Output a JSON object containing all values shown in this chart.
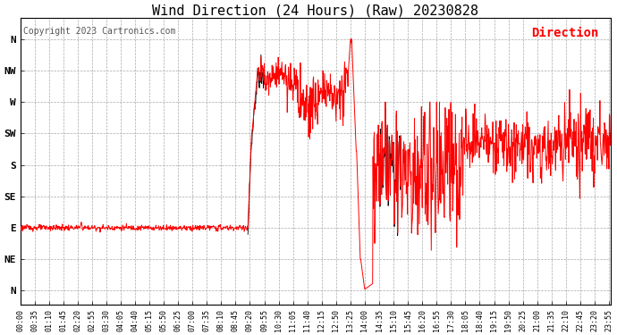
{
  "title": "Wind Direction (24 Hours) (Raw) 20230828",
  "copyright": "Copyright 2023 Cartronics.com",
  "legend_label": "Direction",
  "legend_color": "#ff0000",
  "background_color": "#ffffff",
  "plot_bg_color": "#ffffff",
  "grid_color": "#aaaaaa",
  "line_color_red": "#ff0000",
  "line_color_black": "#000000",
  "ytick_labels": [
    "N",
    "NW",
    "W",
    "SW",
    "S",
    "SE",
    "E",
    "NE",
    "N"
  ],
  "ytick_values": [
    360,
    315,
    270,
    225,
    180,
    135,
    90,
    45,
    0
  ],
  "ymin": -20,
  "ymax": 390,
  "xtick_labels": [
    "00:00",
    "00:35",
    "01:10",
    "01:45",
    "02:20",
    "02:55",
    "03:30",
    "04:05",
    "04:40",
    "05:15",
    "05:50",
    "06:25",
    "07:00",
    "07:35",
    "08:10",
    "08:45",
    "09:20",
    "09:55",
    "10:30",
    "11:05",
    "11:40",
    "12:15",
    "12:50",
    "13:25",
    "14:00",
    "14:35",
    "15:10",
    "15:45",
    "16:20",
    "16:55",
    "17:30",
    "18:05",
    "18:40",
    "19:15",
    "19:50",
    "20:25",
    "21:00",
    "21:35",
    "22:10",
    "22:45",
    "23:20",
    "23:55"
  ],
  "title_fontsize": 11,
  "copyright_fontsize": 7,
  "legend_fontsize": 10,
  "axis_label_fontsize": 8,
  "xtick_fontsize": 6,
  "figsize": [
    6.9,
    3.75
  ],
  "dpi": 100
}
